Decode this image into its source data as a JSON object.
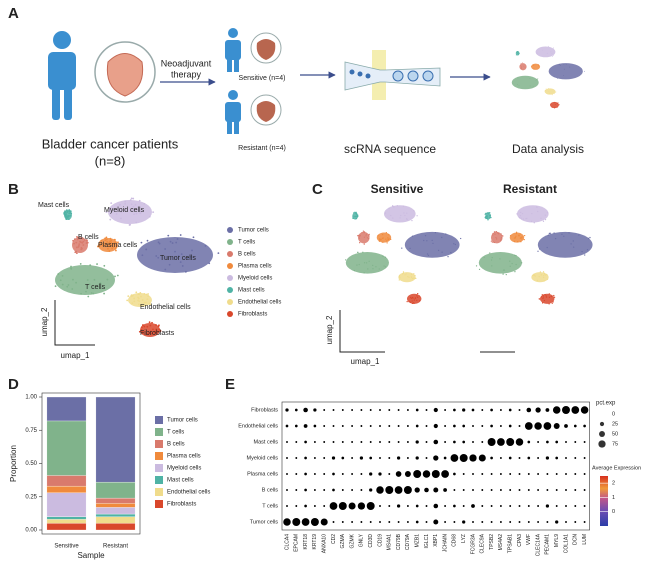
{
  "panel_letters": [
    "A",
    "B",
    "C",
    "D",
    "E"
  ],
  "panel_a": {
    "patients_label": "Bladder cancer patients",
    "patients_n": "(n=8)",
    "therapy_label": [
      "Neoadjuvant",
      "therapy"
    ],
    "sensitive_label": "Sensitive (n=4)",
    "resistant_label": "Resistant (n=4)",
    "sequence_label": "scRNA sequence",
    "analysis_label": "Data analysis"
  },
  "panel_b": {
    "cluster_labels": [
      "Tumor cells",
      "T cells",
      "B cells",
      "Plasma cells",
      "Myeloid cells",
      "Mast cells",
      "Endothelial cells",
      "Fibroblasts"
    ],
    "legend": [
      "Tumor cells",
      "T cells",
      "B cells",
      "Plasma cells",
      "Myeloid cells",
      "Mast cells",
      "Endothelial cells",
      "Fibroblasts"
    ],
    "xlabel": "umap_1",
    "ylabel": "umap_2"
  },
  "panel_c": {
    "titles": [
      "Sensitive",
      "Resistant"
    ],
    "xlabel": "umap_1",
    "ylabel": "umap_2"
  },
  "chart_data": [
    {
      "type": "stacked_bar",
      "xlabel": "Sample",
      "ylabel": "Proportion",
      "categories": [
        "Sensitive",
        "Resistant"
      ],
      "ylim": [
        0,
        1
      ],
      "yticks": [
        {
          "value": 0,
          "label": "0.00"
        },
        {
          "value": 0.25,
          "label": "0.25"
        },
        {
          "value": 0.5,
          "label": "0.50"
        },
        {
          "value": 0.75,
          "label": "0.75"
        },
        {
          "value": 1,
          "label": "1.00"
        }
      ],
      "series": [
        {
          "name": "Tumor cells",
          "color": "#6b6fa6",
          "values": [
            0.18,
            0.64
          ]
        },
        {
          "name": "T cells",
          "color": "#80b38b",
          "values": [
            0.41,
            0.12
          ]
        },
        {
          "name": "B cells",
          "color": "#d97a6c",
          "values": [
            0.08,
            0.04
          ]
        },
        {
          "name": "Plasma cells",
          "color": "#f08a3c",
          "values": [
            0.05,
            0.03
          ]
        },
        {
          "name": "Myeloid cells",
          "color": "#cbbbe0",
          "values": [
            0.18,
            0.05
          ]
        },
        {
          "name": "Mast cells",
          "color": "#4fb3a5",
          "values": [
            0.02,
            0.02
          ]
        },
        {
          "name": "Endothelial cells",
          "color": "#f0dc8c",
          "values": [
            0.03,
            0.05
          ]
        },
        {
          "name": "Fibroblasts",
          "color": "#d9472b",
          "values": [
            0.05,
            0.05
          ]
        }
      ]
    },
    {
      "type": "dot",
      "cell_types": [
        "Fibroblasts",
        "Endothelial cells",
        "Mast cells",
        "Myeloid cells",
        "Plasma cells",
        "B cells",
        "T cells",
        "Tumor cells"
      ],
      "genes": [
        "CLCA4",
        "EPCAM",
        "KRT18",
        "KRT19",
        "ANXA10",
        "CD2",
        "GZMA",
        "GZMK",
        "GNLY",
        "CD3D",
        "CD19",
        "MS4A1",
        "CD79B",
        "CD79A",
        "MZB1",
        "IGLC1",
        "XBP1",
        "JCHAIN",
        "CD68",
        "LYZ",
        "FCGR3A",
        "CLEC9A",
        "TPSB2",
        "MS4A2",
        "TPSAB1",
        "CPA3",
        "VWF",
        "CLEC14A",
        "PECAM1",
        "MYL9",
        "COL1A1",
        "DCN",
        "LUM"
      ],
      "size_title": "pct.exp",
      "size_ticks": [
        0,
        25,
        50,
        75
      ],
      "color_title": "Average Expression",
      "clim": [
        -1,
        2.5
      ],
      "cticks": [
        2,
        1,
        0
      ],
      "exp": [
        [
          -0.2,
          -0.3,
          0,
          -0.3,
          -0.4,
          -0.5,
          -0.5,
          -0.5,
          -0.5,
          -0.5,
          -0.5,
          -0.5,
          -0.5,
          -0.5,
          -0.4,
          -0.4,
          -0.2,
          -0.4,
          -0.4,
          -0.3,
          -0.4,
          -0.4,
          -0.4,
          -0.5,
          -0.4,
          -0.4,
          0.3,
          0.5,
          -0.2,
          1.8,
          2.2,
          2.1,
          1.9
        ],
        [
          -0.3,
          -0.2,
          -0.1,
          -0.3,
          -0.4,
          -0.5,
          -0.5,
          -0.5,
          -0.5,
          -0.5,
          -0.5,
          -0.5,
          -0.5,
          -0.5,
          -0.4,
          -0.4,
          -0.2,
          -0.4,
          -0.4,
          -0.4,
          -0.4,
          -0.4,
          -0.4,
          -0.5,
          -0.4,
          -0.4,
          2.0,
          2.2,
          1.9,
          0.6,
          -0.2,
          -0.3,
          -0.3
        ],
        [
          -0.4,
          -0.4,
          -0.3,
          -0.4,
          -0.4,
          -0.5,
          -0.5,
          -0.5,
          -0.5,
          -0.5,
          -0.5,
          -0.5,
          -0.5,
          -0.5,
          -0.3,
          -0.4,
          -0.1,
          -0.4,
          -0.3,
          -0.4,
          -0.4,
          -0.4,
          2.1,
          2.0,
          2.2,
          1.9,
          -0.3,
          -0.4,
          -0.4,
          -0.4,
          -0.4,
          -0.4,
          -0.4
        ],
        [
          -0.4,
          -0.4,
          -0.3,
          -0.4,
          -0.4,
          -0.3,
          -0.4,
          -0.4,
          -0.3,
          -0.4,
          -0.4,
          -0.4,
          -0.3,
          -0.4,
          -0.3,
          -0.4,
          0.2,
          -0.3,
          2.0,
          2.2,
          1.8,
          1.9,
          -0.3,
          -0.4,
          -0.3,
          -0.4,
          -0.4,
          -0.4,
          -0.3,
          -0.4,
          -0.4,
          -0.4,
          -0.4
        ],
        [
          -0.4,
          -0.4,
          -0.3,
          -0.4,
          -0.4,
          -0.4,
          -0.4,
          -0.4,
          -0.4,
          -0.3,
          -0.3,
          -0.4,
          0.4,
          0.6,
          2.1,
          1.9,
          2.2,
          2.0,
          -0.4,
          -0.4,
          -0.4,
          -0.4,
          -0.4,
          -0.4,
          -0.4,
          -0.4,
          -0.4,
          -0.4,
          -0.4,
          -0.4,
          -0.4,
          -0.4,
          -0.4
        ],
        [
          -0.4,
          -0.4,
          -0.3,
          -0.4,
          -0.4,
          -0.4,
          -0.4,
          -0.4,
          -0.4,
          -0.3,
          1.9,
          2.1,
          2.0,
          2.2,
          0.5,
          0.1,
          0.2,
          -0.2,
          -0.4,
          -0.4,
          -0.4,
          -0.4,
          -0.4,
          -0.4,
          -0.4,
          -0.4,
          -0.4,
          -0.4,
          -0.4,
          -0.4,
          -0.4,
          -0.4,
          -0.4
        ],
        [
          -0.4,
          -0.4,
          -0.3,
          -0.4,
          -0.4,
          1.9,
          2.1,
          1.8,
          2.0,
          2.2,
          -0.4,
          -0.4,
          -0.3,
          -0.4,
          -0.4,
          -0.4,
          0.1,
          -0.4,
          -0.4,
          -0.4,
          -0.2,
          -0.4,
          -0.4,
          -0.4,
          -0.4,
          -0.4,
          -0.4,
          -0.4,
          -0.3,
          -0.4,
          -0.4,
          -0.4,
          -0.4
        ],
        [
          2.0,
          2.2,
          1.9,
          2.1,
          1.8,
          -0.4,
          -0.4,
          -0.4,
          -0.4,
          -0.4,
          -0.4,
          -0.4,
          -0.4,
          -0.4,
          -0.4,
          -0.4,
          0.0,
          -0.4,
          -0.4,
          -0.3,
          -0.4,
          -0.4,
          -0.4,
          -0.4,
          -0.4,
          -0.4,
          -0.4,
          -0.4,
          -0.4,
          -0.3,
          -0.4,
          -0.4,
          -0.4
        ]
      ],
      "pct": [
        [
          15,
          10,
          30,
          15,
          5,
          5,
          5,
          5,
          5,
          5,
          5,
          5,
          5,
          5,
          10,
          5,
          25,
          5,
          10,
          15,
          10,
          5,
          10,
          5,
          10,
          5,
          30,
          40,
          20,
          80,
          90,
          85,
          80
        ],
        [
          10,
          10,
          20,
          10,
          5,
          5,
          5,
          5,
          5,
          5,
          5,
          5,
          5,
          5,
          10,
          5,
          25,
          5,
          10,
          10,
          5,
          5,
          10,
          5,
          10,
          5,
          85,
          80,
          85,
          50,
          20,
          10,
          10
        ],
        [
          5,
          5,
          10,
          5,
          5,
          5,
          5,
          5,
          5,
          5,
          5,
          5,
          5,
          5,
          15,
          5,
          30,
          5,
          10,
          10,
          5,
          5,
          90,
          85,
          90,
          80,
          10,
          5,
          10,
          10,
          5,
          5,
          5
        ],
        [
          5,
          5,
          10,
          5,
          5,
          15,
          10,
          5,
          15,
          10,
          5,
          5,
          15,
          5,
          15,
          5,
          40,
          10,
          85,
          90,
          75,
          70,
          10,
          5,
          10,
          5,
          10,
          5,
          15,
          10,
          5,
          5,
          5
        ],
        [
          5,
          5,
          10,
          5,
          5,
          10,
          5,
          5,
          5,
          15,
          15,
          5,
          45,
          50,
          90,
          80,
          90,
          85,
          10,
          5,
          5,
          5,
          5,
          5,
          5,
          5,
          5,
          5,
          5,
          5,
          5,
          5,
          5
        ],
        [
          5,
          5,
          10,
          5,
          5,
          10,
          5,
          5,
          5,
          15,
          80,
          90,
          85,
          90,
          40,
          30,
          35,
          20,
          5,
          5,
          5,
          5,
          5,
          5,
          5,
          5,
          5,
          5,
          5,
          5,
          5,
          5,
          5
        ],
        [
          5,
          5,
          10,
          5,
          5,
          85,
          90,
          70,
          75,
          90,
          5,
          5,
          15,
          5,
          10,
          5,
          30,
          5,
          10,
          5,
          20,
          5,
          5,
          5,
          5,
          5,
          5,
          5,
          15,
          5,
          5,
          5,
          5
        ],
        [
          80,
          90,
          85,
          90,
          70,
          5,
          5,
          5,
          5,
          5,
          5,
          5,
          5,
          5,
          10,
          5,
          35,
          5,
          5,
          15,
          5,
          5,
          5,
          5,
          5,
          5,
          5,
          5,
          5,
          15,
          5,
          5,
          5
        ]
      ]
    }
  ]
}
